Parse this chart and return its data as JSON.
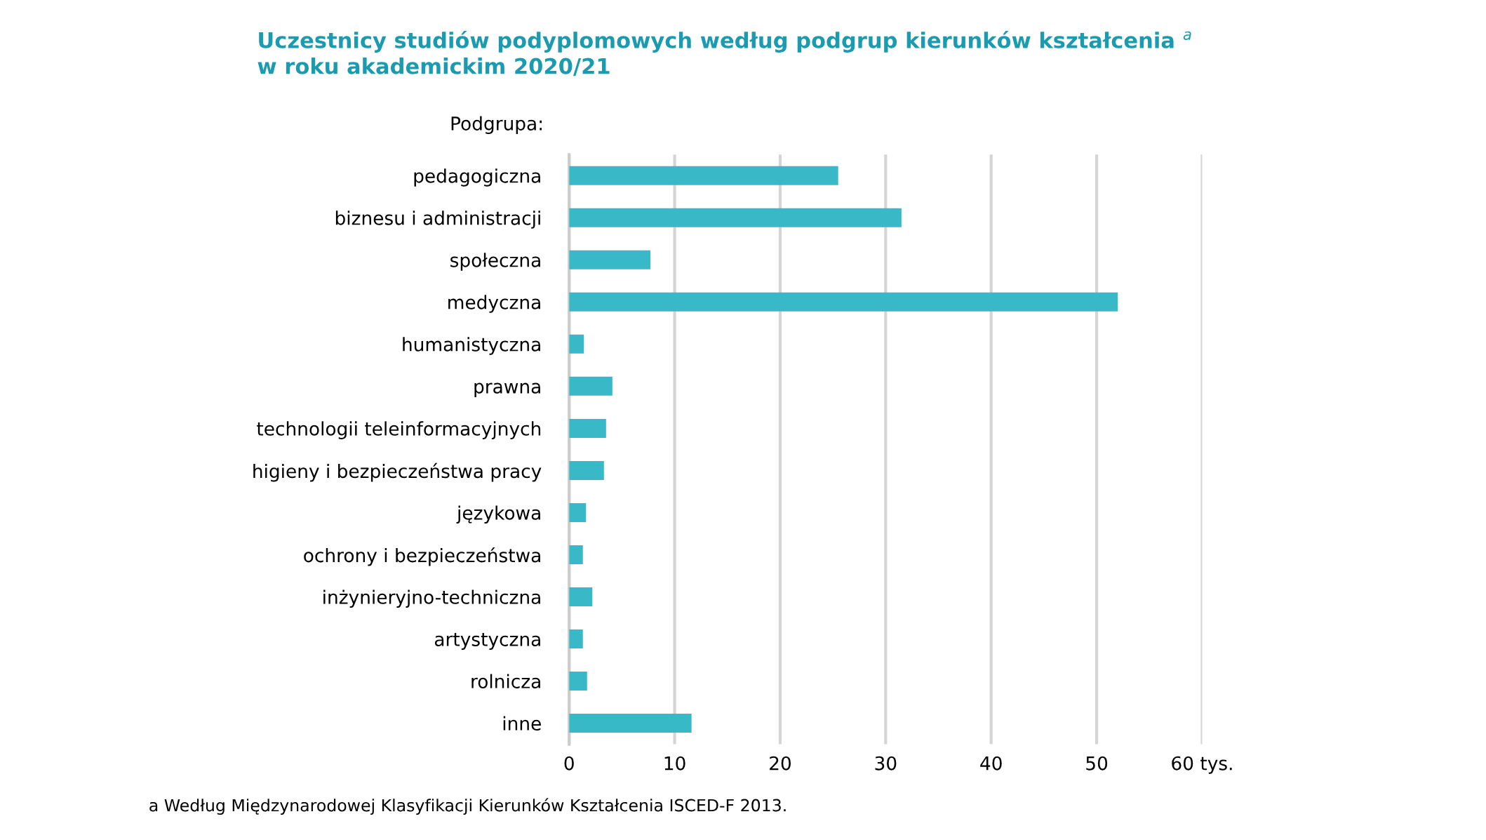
{
  "chart_data": {
    "type": "bar",
    "orientation": "horizontal",
    "title": "Uczestnicy studiów podyplomowych według podgrup kierunków kształcenia $^{a}$\nw roku akademickim 2020/21",
    "ylabel": "Podgrupa:",
    "categories": [
      "pedagogiczna",
      "biznesu i administracji",
      "społeczna",
      "medyczna",
      "humanistyczna",
      "prawna",
      "technologii teleinformacyjnych",
      "higieny i bezpieczeństwa pracy",
      "językowa",
      "ochrony i bezpieczeństwa",
      "inżynieryjno-techniczna",
      "artystyczna",
      "rolnicza",
      "inne"
    ],
    "values": [
      25.5,
      31.5,
      7.7,
      52.0,
      1.4,
      4.1,
      3.5,
      3.3,
      1.6,
      1.3,
      2.2,
      1.3,
      1.7,
      11.6
    ],
    "color": "#39b9c7",
    "xlim": [
      0,
      60
    ],
    "xticks": [
      0,
      10,
      20,
      30,
      40,
      50,
      {
        "value": 60,
        "label": "60 tys."
      }
    ],
    "grid": "x",
    "annotations": [
      "a Według Międzynarodowej Klasyfikacji Kierunków Kształcenia ISCED-F 2013."
    ]
  }
}
